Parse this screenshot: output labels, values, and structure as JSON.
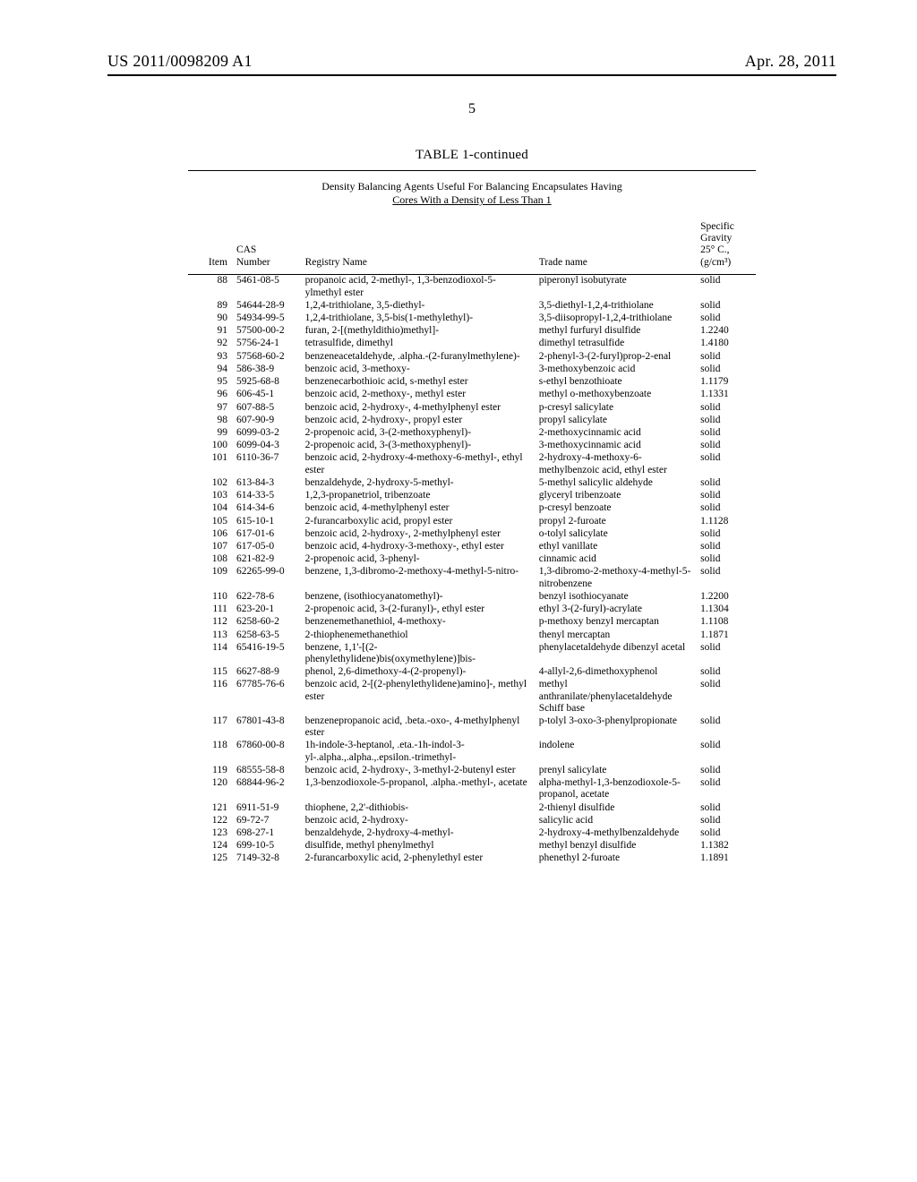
{
  "header": {
    "left": "US 2011/0098209 A1",
    "right": "Apr. 28, 2011"
  },
  "page_number": "5",
  "table": {
    "title": "TABLE 1-continued",
    "caption_line1": "Density Balancing Agents Useful For Balancing Encapsulates Having",
    "caption_line2": "Cores With a Density of Less Than 1",
    "columns": {
      "item": "Item",
      "cas": "CAS\nNumber",
      "registry": "Registry Name",
      "trade": "Trade name",
      "sg": "Specific\nGravity\n25° C.,\n(g/cm³)"
    },
    "rows": [
      {
        "item": "88",
        "cas": "5461-08-5",
        "reg": "propanoic acid, 2-methyl-, 1,3-benzodioxol-5-ylmethyl ester",
        "trade": "piperonyl isobutyrate",
        "sg": "solid"
      },
      {
        "item": "89",
        "cas": "54644-28-9",
        "reg": "1,2,4-trithiolane, 3,5-diethyl-",
        "trade": "3,5-diethyl-1,2,4-trithiolane",
        "sg": "solid"
      },
      {
        "item": "90",
        "cas": "54934-99-5",
        "reg": "1,2,4-trithiolane, 3,5-bis(1-methylethyl)-",
        "trade": "3,5-diisopropyl-1,2,4-trithiolane",
        "sg": "solid"
      },
      {
        "item": "91",
        "cas": "57500-00-2",
        "reg": "furan, 2-[(methyldithio)methyl]-",
        "trade": "methyl furfuryl disulfide",
        "sg": "1.2240"
      },
      {
        "item": "92",
        "cas": "5756-24-1",
        "reg": "tetrasulfide, dimethyl",
        "trade": "dimethyl tetrasulfide",
        "sg": "1.4180"
      },
      {
        "item": "93",
        "cas": "57568-60-2",
        "reg": "benzeneacetaldehyde, .alpha.-(2-furanylmethylene)-",
        "trade": "2-phenyl-3-(2-furyl)prop-2-enal",
        "sg": "solid"
      },
      {
        "item": "94",
        "cas": "586-38-9",
        "reg": "benzoic acid, 3-methoxy-",
        "trade": "3-methoxybenzoic acid",
        "sg": "solid"
      },
      {
        "item": "95",
        "cas": "5925-68-8",
        "reg": "benzenecarbothioic acid, s-methyl ester",
        "trade": "s-ethyl benzothioate",
        "sg": "1.1179"
      },
      {
        "item": "96",
        "cas": "606-45-1",
        "reg": "benzoic acid, 2-methoxy-, methyl ester",
        "trade": "methyl o-methoxybenzoate",
        "sg": "1.1331"
      },
      {
        "item": "97",
        "cas": "607-88-5",
        "reg": "benzoic acid, 2-hydroxy-, 4-methylphenyl ester",
        "trade": "p-cresyl salicylate",
        "sg": "solid"
      },
      {
        "item": "98",
        "cas": "607-90-9",
        "reg": "benzoic acid, 2-hydroxy-, propyl ester",
        "trade": "propyl salicylate",
        "sg": "solid"
      },
      {
        "item": "99",
        "cas": "6099-03-2",
        "reg": "2-propenoic acid, 3-(2-methoxyphenyl)-",
        "trade": "2-methoxycinnamic acid",
        "sg": "solid"
      },
      {
        "item": "100",
        "cas": "6099-04-3",
        "reg": "2-propenoic acid, 3-(3-methoxyphenyl)-",
        "trade": "3-methoxycinnamic acid",
        "sg": "solid"
      },
      {
        "item": "101",
        "cas": "6110-36-7",
        "reg": "benzoic acid, 2-hydroxy-4-methoxy-6-methyl-, ethyl ester",
        "trade": "2-hydroxy-4-methoxy-6-methylbenzoic acid, ethyl ester",
        "sg": "solid"
      },
      {
        "item": "102",
        "cas": "613-84-3",
        "reg": "benzaldehyde, 2-hydroxy-5-methyl-",
        "trade": "5-methyl salicylic aldehyde",
        "sg": "solid"
      },
      {
        "item": "103",
        "cas": "614-33-5",
        "reg": "1,2,3-propanetriol, tribenzoate",
        "trade": "glyceryl tribenzoate",
        "sg": "solid"
      },
      {
        "item": "104",
        "cas": "614-34-6",
        "reg": "benzoic acid, 4-methylphenyl ester",
        "trade": "p-cresyl benzoate",
        "sg": "solid"
      },
      {
        "item": "105",
        "cas": "615-10-1",
        "reg": "2-furancarboxylic acid, propyl ester",
        "trade": "propyl 2-furoate",
        "sg": "1.1128"
      },
      {
        "item": "106",
        "cas": "617-01-6",
        "reg": "benzoic acid, 2-hydroxy-, 2-methylphenyl ester",
        "trade": "o-tolyl salicylate",
        "sg": "solid"
      },
      {
        "item": "107",
        "cas": "617-05-0",
        "reg": "benzoic acid, 4-hydroxy-3-methoxy-, ethyl ester",
        "trade": "ethyl vanillate",
        "sg": "solid"
      },
      {
        "item": "108",
        "cas": "621-82-9",
        "reg": "2-propenoic acid, 3-phenyl-",
        "trade": "cinnamic acid",
        "sg": "solid"
      },
      {
        "item": "109",
        "cas": "62265-99-0",
        "reg": "benzene, 1,3-dibromo-2-methoxy-4-methyl-5-nitro-",
        "trade": "1,3-dibromo-2-methoxy-4-methyl-5-nitrobenzene",
        "sg": "solid"
      },
      {
        "item": "110",
        "cas": "622-78-6",
        "reg": "benzene, (isothiocyanatomethyl)-",
        "trade": "benzyl isothiocyanate",
        "sg": "1.2200"
      },
      {
        "item": "111",
        "cas": "623-20-1",
        "reg": "2-propenoic acid, 3-(2-furanyl)-, ethyl ester",
        "trade": "ethyl 3-(2-furyl)-acrylate",
        "sg": "1.1304"
      },
      {
        "item": "112",
        "cas": "6258-60-2",
        "reg": "benzenemethanethiol, 4-methoxy-",
        "trade": "p-methoxy benzyl mercaptan",
        "sg": "1.1108"
      },
      {
        "item": "113",
        "cas": "6258-63-5",
        "reg": "2-thiophenemethanethiol",
        "trade": "thenyl mercaptan",
        "sg": "1.1871"
      },
      {
        "item": "114",
        "cas": "65416-19-5",
        "reg": "benzene, 1,1'-[(2-phenylethylidene)bis(oxymethylene)]bis-",
        "trade": "phenylacetaldehyde dibenzyl acetal",
        "sg": "solid"
      },
      {
        "item": "115",
        "cas": "6627-88-9",
        "reg": "phenol, 2,6-dimethoxy-4-(2-propenyl)-",
        "trade": "4-allyl-2,6-dimethoxyphenol",
        "sg": "solid"
      },
      {
        "item": "116",
        "cas": "67785-76-6",
        "reg": "benzoic acid, 2-[(2-phenylethylidene)amino]-, methyl ester",
        "trade": "methyl anthranilate/phenylacetaldehyde Schiff base",
        "sg": "solid"
      },
      {
        "item": "117",
        "cas": "67801-43-8",
        "reg": "benzenepropanoic acid, .beta.-oxo-, 4-methylphenyl ester",
        "trade": "p-tolyl 3-oxo-3-phenylpropionate",
        "sg": "solid"
      },
      {
        "item": "118",
        "cas": "67860-00-8",
        "reg": "1h-indole-3-heptanol, .eta.-1h-indol-3-yl-.alpha.,.alpha.,.epsilon.-trimethyl-",
        "trade": "indolene",
        "sg": "solid"
      },
      {
        "item": "119",
        "cas": "68555-58-8",
        "reg": "benzoic acid, 2-hydroxy-, 3-methyl-2-butenyl ester",
        "trade": "prenyl salicylate",
        "sg": "solid"
      },
      {
        "item": "120",
        "cas": "68844-96-2",
        "reg": "1,3-benzodioxole-5-propanol, .alpha.-methyl-, acetate",
        "trade": "alpha-methyl-1,3-benzodioxole-5-propanol, acetate",
        "sg": "solid"
      },
      {
        "item": "121",
        "cas": "6911-51-9",
        "reg": "thiophene, 2,2'-dithiobis-",
        "trade": "2-thienyl disulfide",
        "sg": "solid"
      },
      {
        "item": "122",
        "cas": "69-72-7",
        "reg": "benzoic acid, 2-hydroxy-",
        "trade": "salicylic acid",
        "sg": "solid"
      },
      {
        "item": "123",
        "cas": "698-27-1",
        "reg": "benzaldehyde, 2-hydroxy-4-methyl-",
        "trade": "2-hydroxy-4-methylbenzaldehyde",
        "sg": "solid"
      },
      {
        "item": "124",
        "cas": "699-10-5",
        "reg": "disulfide, methyl phenylmethyl",
        "trade": "methyl benzyl disulfide",
        "sg": "1.1382"
      },
      {
        "item": "125",
        "cas": "7149-32-8",
        "reg": "2-furancarboxylic acid, 2-phenylethyl ester",
        "trade": "phenethyl 2-furoate",
        "sg": "1.1891"
      }
    ]
  }
}
